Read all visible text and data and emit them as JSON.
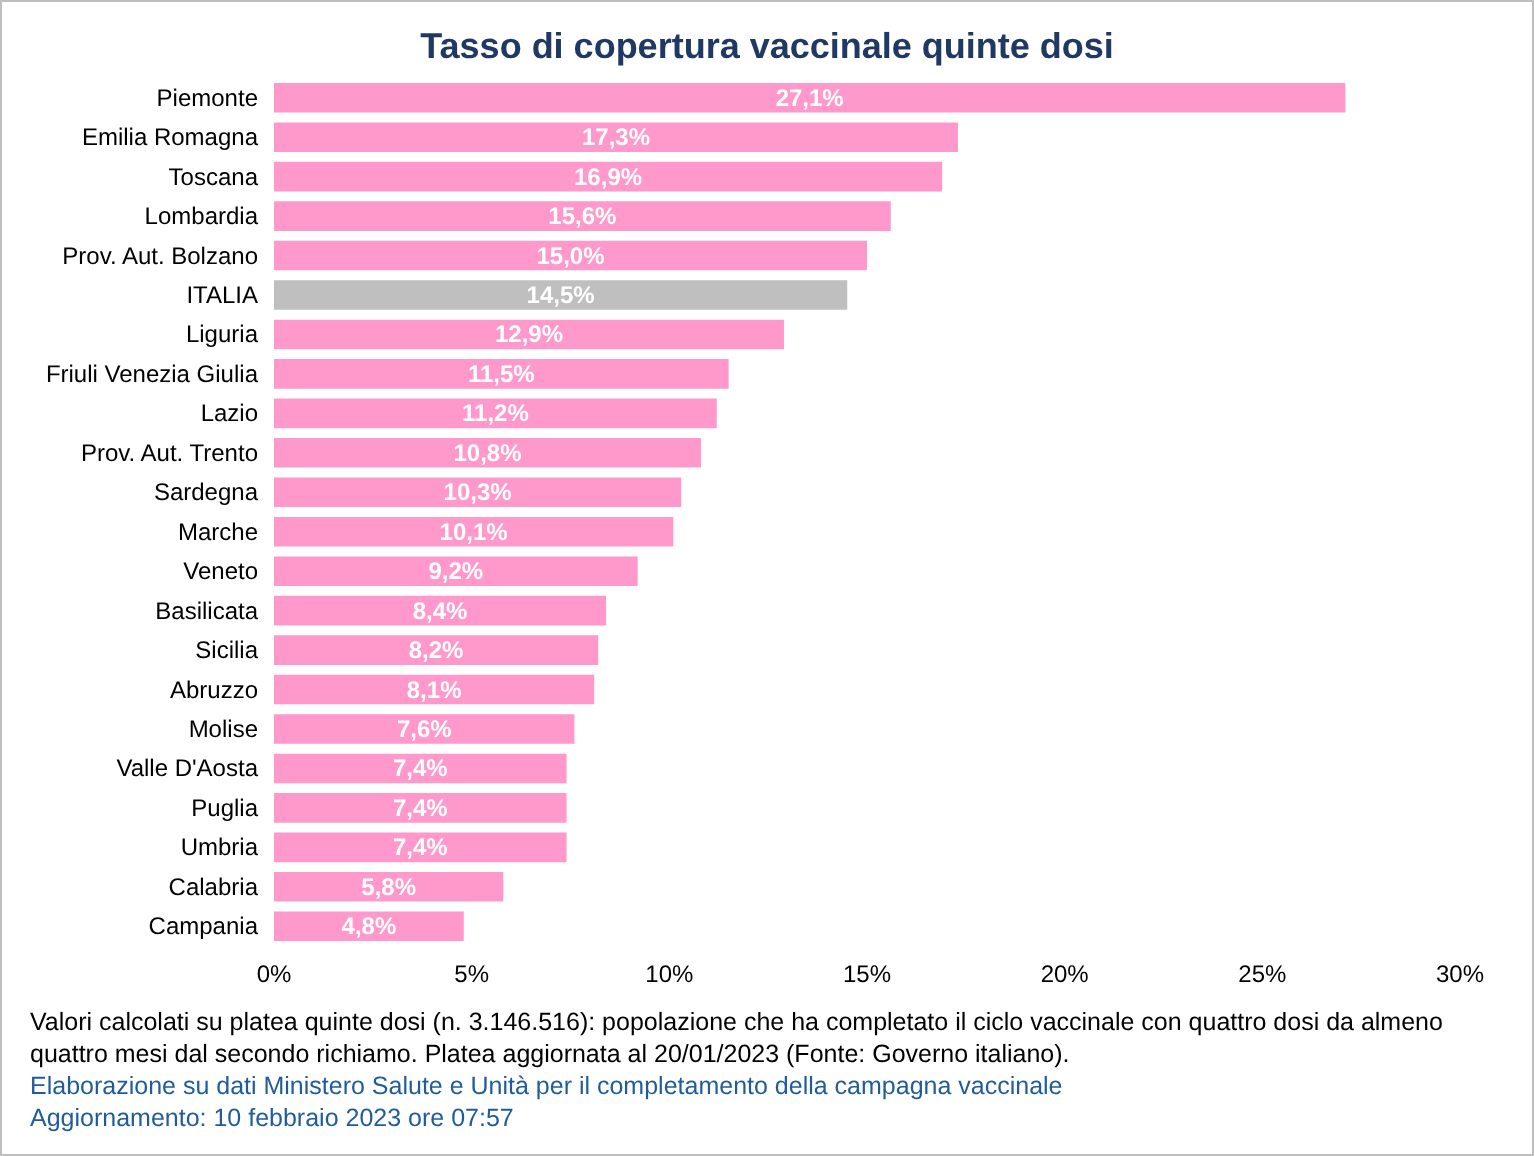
{
  "chart_data": {
    "type": "bar",
    "orientation": "horizontal",
    "title": "Tasso di copertura vaccinale quinte dosi",
    "categories": [
      "Piemonte",
      "Emilia Romagna",
      "Toscana",
      "Lombardia",
      "Prov. Aut. Bolzano",
      "ITALIA",
      "Liguria",
      "Friuli Venezia Giulia",
      "Lazio",
      "Prov. Aut. Trento",
      "Sardegna",
      "Marche",
      "Veneto",
      "Basilicata",
      "Sicilia",
      "Abruzzo",
      "Molise",
      "Valle D'Aosta",
      "Puglia",
      "Umbria",
      "Calabria",
      "Campania"
    ],
    "values": [
      27.1,
      17.3,
      16.9,
      15.6,
      15.0,
      14.5,
      12.9,
      11.5,
      11.2,
      10.8,
      10.3,
      10.1,
      9.2,
      8.4,
      8.2,
      8.1,
      7.6,
      7.4,
      7.4,
      7.4,
      5.8,
      4.8
    ],
    "value_labels": [
      "27,1%",
      "17,3%",
      "16,9%",
      "15,6%",
      "15,0%",
      "14,5%",
      "12,9%",
      "11,5%",
      "11,2%",
      "10,8%",
      "10,3%",
      "10,1%",
      "9,2%",
      "8,4%",
      "8,2%",
      "8,1%",
      "7,6%",
      "7,4%",
      "7,4%",
      "7,4%",
      "5,8%",
      "4,8%"
    ],
    "colors": [
      "#ff99cc",
      "#ff99cc",
      "#ff99cc",
      "#ff99cc",
      "#ff99cc",
      "#bfbfbf",
      "#ff99cc",
      "#ff99cc",
      "#ff99cc",
      "#ff99cc",
      "#ff99cc",
      "#ff99cc",
      "#ff99cc",
      "#ff99cc",
      "#ff99cc",
      "#ff99cc",
      "#ff99cc",
      "#ff99cc",
      "#ff99cc",
      "#ff99cc",
      "#ff99cc",
      "#ff99cc"
    ],
    "xlim": [
      0,
      30
    ],
    "xticks": [
      {
        "value": 0,
        "label": "0%"
      },
      {
        "value": 5,
        "label": "5%"
      },
      {
        "value": 10,
        "label": "10%"
      },
      {
        "value": 15,
        "label": "15%"
      },
      {
        "value": 20,
        "label": "20%"
      },
      {
        "value": 25,
        "label": "25%"
      },
      {
        "value": 30,
        "label": "30%"
      }
    ],
    "grid": false,
    "annotations": [
      "Valori calcolati su platea quinte dosi (n. 3.146.516): popolazione che ha completato il ciclo vaccinale con quattro dosi da almeno quattro mesi dal secondo richiamo. Platea aggiornata al 20/01/2023 (Fonte: Governo italiano).",
      "Elaborazione su dati Ministero Salute e Unità per il completamento della campagna vaccinale",
      "Aggiornamento: 10 febbraio 2023 ore 07:57"
    ]
  }
}
